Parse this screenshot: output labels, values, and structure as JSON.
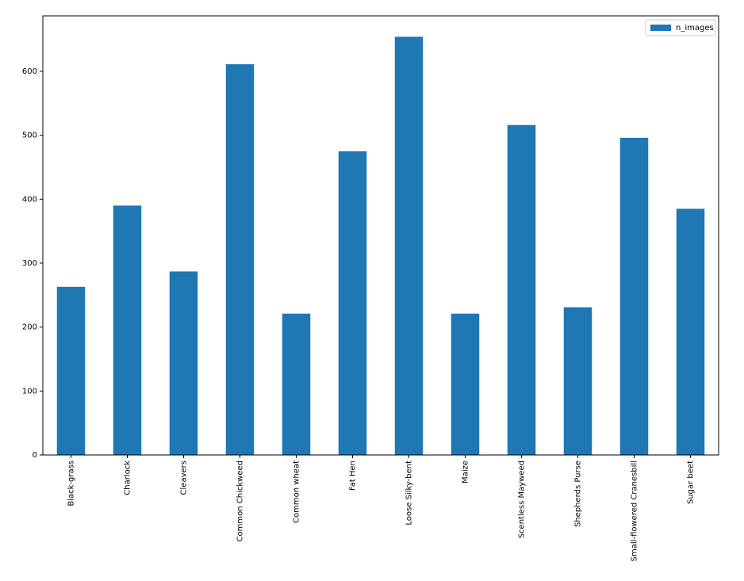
{
  "chart_data": {
    "type": "bar",
    "categories": [
      "Black-grass",
      "Charlock",
      "Cleavers",
      "Common Chickweed",
      "Common wheat",
      "Fat Hen",
      "Loose Silky-bent",
      "Maize",
      "Scentless Mayweed",
      "Shepherds Purse",
      "Small-flowered Cranesbill",
      "Sugar beet"
    ],
    "series": [
      {
        "name": "n_images",
        "color": "#1f77b4",
        "values": [
          263,
          390,
          287,
          611,
          221,
          475,
          654,
          221,
          516,
          231,
          496,
          385
        ]
      }
    ],
    "ylim": [
      0,
      686.7
    ],
    "yticks": [
      0,
      100,
      200,
      300,
      400,
      500,
      600
    ],
    "legend": "upper right"
  }
}
